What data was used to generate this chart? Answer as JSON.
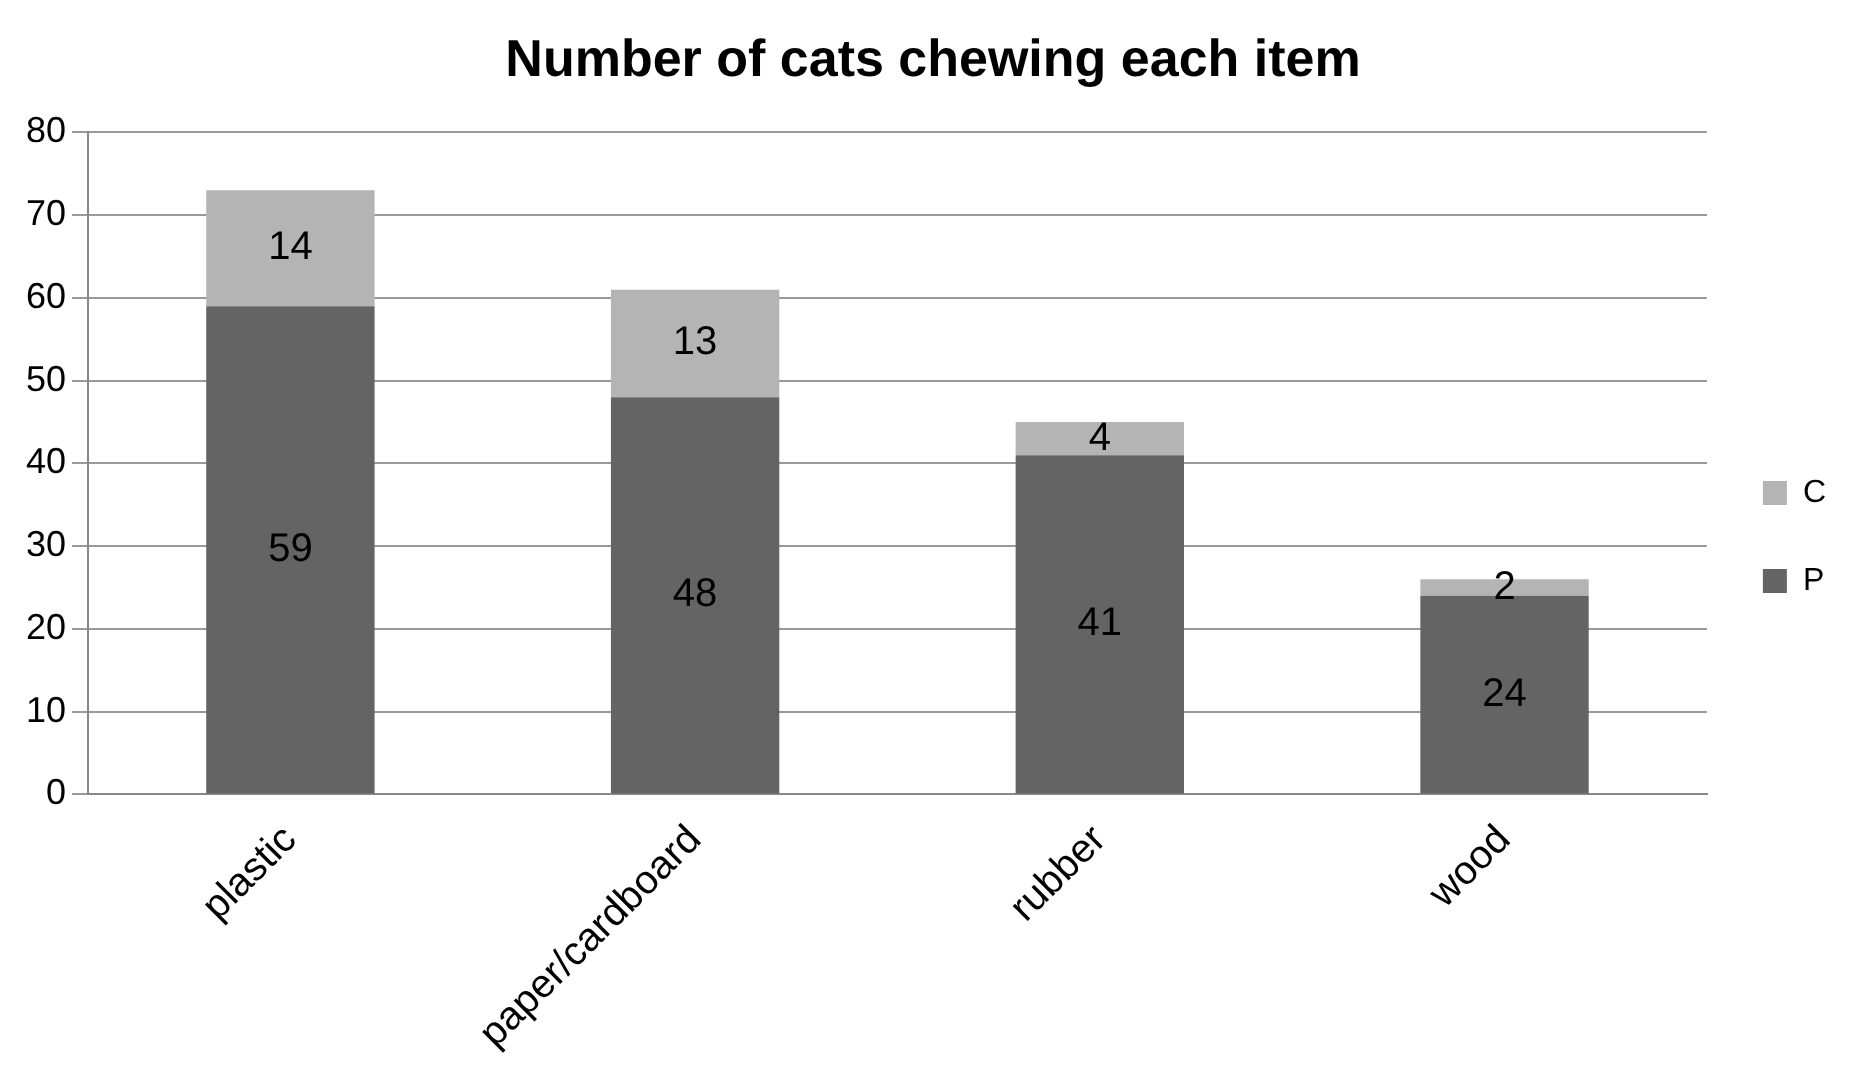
{
  "chart_data": {
    "type": "bar",
    "title": "Number of cats chewing each item",
    "categories": [
      "plastic",
      "paper/cardboard",
      "rubber",
      "wood"
    ],
    "series": [
      {
        "name": "P",
        "color": "#646464",
        "values": [
          59,
          48,
          41,
          24
        ]
      },
      {
        "name": "C",
        "color": "#b4b4b4",
        "values": [
          14,
          13,
          4,
          2
        ]
      }
    ],
    "stacked": true,
    "data_labels": true,
    "ylim": [
      0,
      80
    ],
    "yticks": [
      0,
      10,
      20,
      30,
      40,
      50,
      60,
      70,
      80
    ],
    "grid": "y",
    "legend": "right"
  }
}
